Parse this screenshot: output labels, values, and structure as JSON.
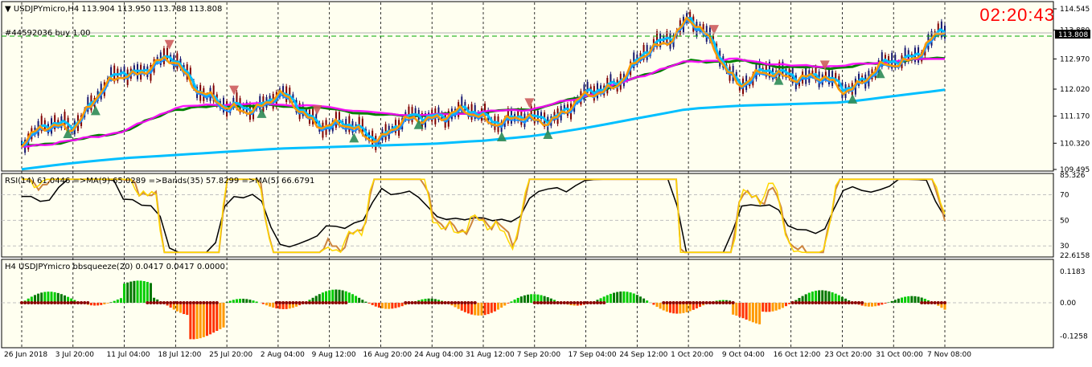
{
  "window": {
    "title": "USDJPYmicro,H4",
    "ohlc": "113.904 113.950 113.788 113.808",
    "order_label": "#44592036 buy 1.00",
    "clock": "02:20:43",
    "current_price": "113.808"
  },
  "main_panel": {
    "price_axis_labels": [
      "114.545",
      "113.880",
      "112.970",
      "112.020",
      "111.170",
      "110.320",
      "109.495"
    ],
    "colors": {
      "background": "#fffff0",
      "up_candle": "#191970",
      "down_candle": "#800000",
      "sky": "#00bfff",
      "blue": "#1e90ff",
      "orange": "#ff9900",
      "magenta": "#ff00ff",
      "green": "#008000",
      "deep_sky": "#00bfff"
    }
  },
  "rsi_panel": {
    "label": "RSI(14) 61.0446  =>MA(9) 65.0289  =>Bands(35) 57.8299  =>MA(5) 66.6791",
    "levels": [
      "85.326",
      "70",
      "50",
      "30",
      "22.6158"
    ]
  },
  "squeeze_panel": {
    "label": "H4 USDJPYmicro bbsqueeze(20) 0.0417 0.0417 0.0000",
    "levels": [
      "0.1183",
      "0.00",
      "0.00",
      "-0.1258"
    ]
  },
  "time_axis": [
    "26 Jun 2018",
    "3 Jul 20:00",
    "11 Jul 04:00",
    "18 Jul 12:00",
    "25 Jul 20:00",
    "2 Aug 04:00",
    "9 Aug 12:00",
    "16 Aug 20:00",
    "24 Aug 04:00",
    "31 Aug 12:00",
    "7 Sep 20:00",
    "17 Sep 04:00",
    "24 Sep 12:00",
    "1 Oct 20:00",
    "9 Oct 04:00",
    "16 Oct 12:00",
    "23 Oct 20:00",
    "31 Oct 00:00",
    "7 Nov 08:00"
  ],
  "chart_data": {
    "type": "line",
    "symbol": "USDJPYmicro",
    "timeframe": "H4",
    "x": [
      "26 Jun 2018",
      "3 Jul 20:00",
      "11 Jul 04:00",
      "18 Jul 12:00",
      "25 Jul 20:00",
      "2 Aug 04:00",
      "9 Aug 12:00",
      "16 Aug 20:00",
      "24 Aug 04:00",
      "31 Aug 12:00",
      "7 Sep 20:00",
      "17 Sep 04:00",
      "24 Sep 12:00",
      "1 Oct 20:00",
      "9 Oct 04:00",
      "16 Oct 12:00",
      "23 Oct 20:00",
      "31 Oct 00:00",
      "7 Nov 08:00"
    ],
    "series": [
      {
        "values": [
          110.5,
          111.0,
          112.6,
          112.9,
          111.3,
          111.8,
          110.9,
          110.6,
          111.3,
          111.2,
          111.0,
          111.7,
          112.8,
          114.3,
          112.3,
          112.6,
          112.1,
          112.8,
          113.8
        ]
      },
      {
        "values": [
          110.2,
          110.4,
          110.7,
          111.4,
          111.5,
          111.5,
          111.4,
          111.2,
          111.2,
          111.3,
          111.4,
          111.8,
          112.4,
          112.9,
          112.9,
          112.7,
          112.7,
          112.9,
          113.0
        ]
      },
      {
        "values": [
          109.5,
          109.7,
          109.85,
          109.95,
          110.05,
          110.15,
          110.2,
          110.25,
          110.3,
          110.4,
          110.55,
          110.8,
          111.1,
          111.4,
          111.5,
          111.55,
          111.6,
          111.8,
          112.0
        ]
      }
    ],
    "ylim": [
      109.495,
      114.545
    ]
  }
}
